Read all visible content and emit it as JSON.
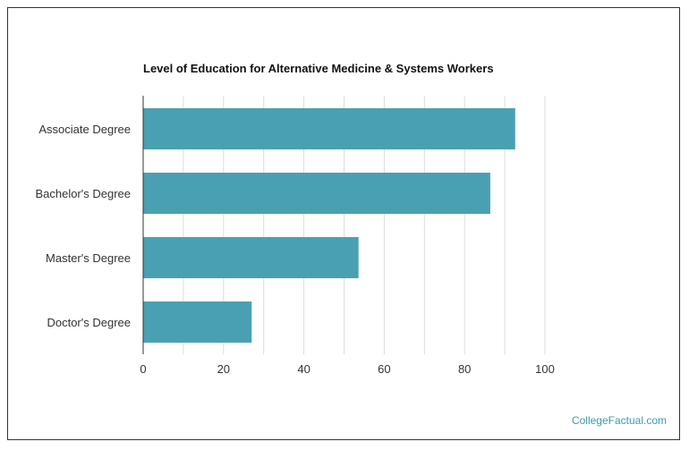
{
  "watermark": "CollegeFactual.com",
  "colors": {
    "bar": "#4aa0b3",
    "grid": "#dddddd",
    "axis": "#333333"
  },
  "chart_data": {
    "type": "bar",
    "orientation": "horizontal",
    "title": "Level of Education for Alternative Medicine & Systems Workers",
    "categories": [
      "Associate Degree",
      "Bachelor's Degree",
      "Master's Degree",
      "Doctor's Degree"
    ],
    "values": [
      92.6,
      86.4,
      53.6,
      27.0
    ],
    "xlim": [
      0,
      100
    ],
    "xticks": [
      0,
      20,
      40,
      60,
      80,
      100
    ],
    "xlabel": "",
    "ylabel": "",
    "grid": true,
    "legend": "none"
  }
}
